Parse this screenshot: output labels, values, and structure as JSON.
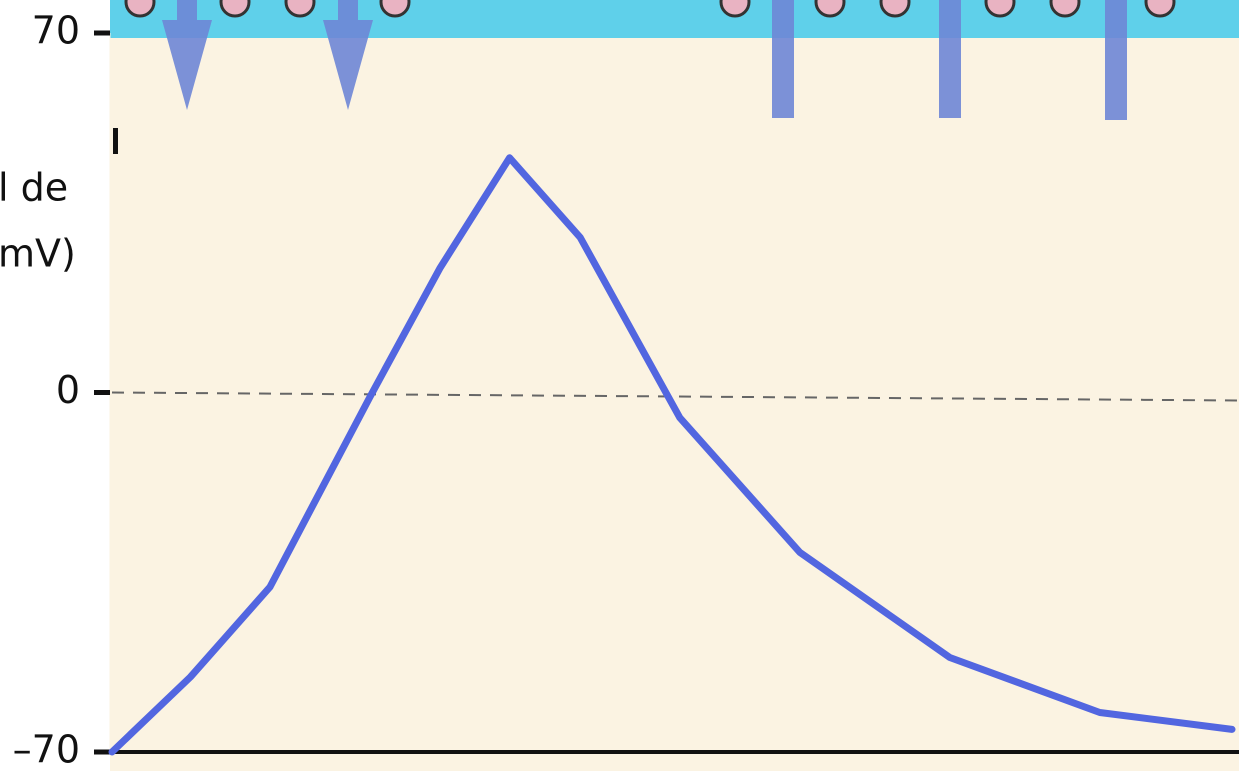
{
  "chart_data": {
    "type": "line",
    "ylabel_lines": [
      "l de",
      "mV)"
    ],
    "x": [
      0,
      7,
      14.1,
      23,
      29.3,
      35.5,
      41.8,
      50.7,
      61.4,
      74.8,
      88.2,
      100
    ],
    "series": [
      {
        "color": "#5266e0",
        "values": [
          -70,
          -55.4,
          -37.9,
          -1,
          24.3,
          45.7,
          30.2,
          -4.9,
          -31.1,
          -51.6,
          -62.3,
          -65.6
        ]
      }
    ],
    "xlim": [
      0,
      100
    ],
    "ylim": [
      -70,
      70
    ],
    "yticks": [
      70,
      0,
      {
        "value": -70,
        "label": "–70"
      }
    ]
  }
}
